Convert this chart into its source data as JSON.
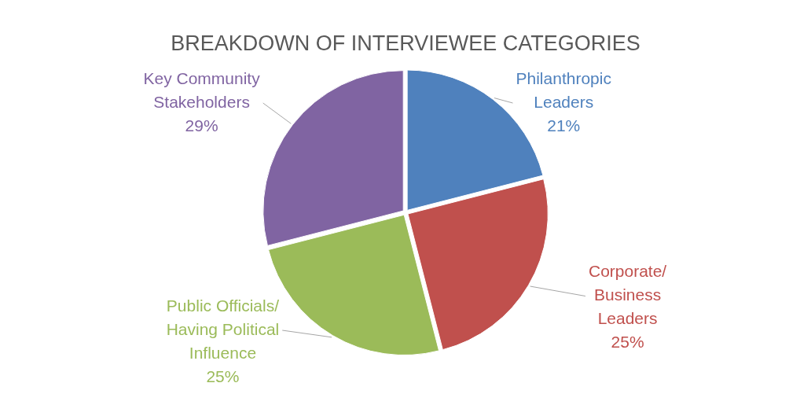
{
  "chart_data": {
    "type": "pie",
    "title": "BREAKDOWN OF INTERVIEWEE CATEGORIES",
    "categories": [
      "Philanthropic Leaders",
      "Corporate/ Business Leaders",
      "Public Officials/ Having Political Influence",
      "Key Community Stakeholders"
    ],
    "values": [
      21,
      25,
      25,
      29
    ],
    "colors": [
      "#4f81bd",
      "#c0504d",
      "#9bbb59",
      "#8064a2"
    ],
    "value_labels": [
      "21%",
      "25%",
      "25%",
      "29%"
    ],
    "legend": false
  }
}
